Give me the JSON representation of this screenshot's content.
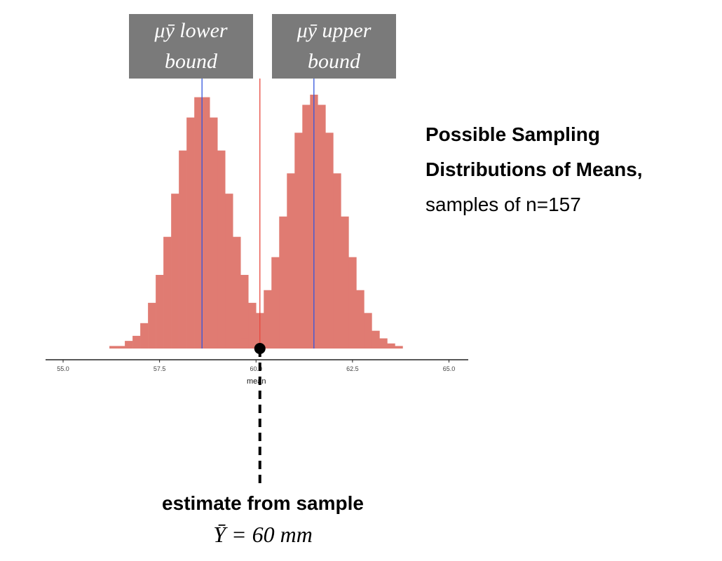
{
  "chart_data": {
    "type": "histogram",
    "bins": [
      55.8,
      56,
      56.2,
      56.4,
      56.6,
      56.8,
      57,
      57.2,
      57.4,
      57.6,
      57.8,
      58,
      58.2,
      58.4,
      58.6,
      58.8,
      59,
      59.2,
      59.4,
      59.6,
      59.8,
      60,
      60.2,
      60.4,
      60.6,
      60.8,
      61,
      61.2,
      61.4,
      61.6,
      61.8,
      62,
      62.2,
      62.4,
      62.6,
      62.8,
      63,
      63.2,
      63.4,
      63.6,
      63.8,
      64,
      64.2,
      64.4
    ],
    "series": [
      {
        "color": "#e07b72",
        "values": [
          0,
          0,
          1,
          1,
          3,
          5,
          10,
          18,
          29,
          44,
          61,
          78,
          91,
          99,
          99,
          91,
          78,
          61,
          44,
          29,
          18,
          10,
          5,
          3,
          1,
          1,
          0,
          0,
          0,
          0,
          0,
          0,
          0,
          0,
          0,
          0,
          0,
          0,
          0,
          0,
          0,
          0,
          0
        ]
      },
      {
        "color": "#e07b72",
        "values": [
          0,
          0,
          0,
          0,
          0,
          0,
          0,
          0,
          0,
          0,
          0,
          0,
          0,
          0,
          0,
          0,
          0,
          1,
          2,
          4,
          7,
          14,
          23,
          36,
          52,
          69,
          85,
          96,
          100,
          96,
          85,
          69,
          52,
          36,
          23,
          14,
          7,
          4,
          2,
          1,
          0,
          0,
          0
        ]
      }
    ],
    "xlim": [
      54.6,
      65.5
    ],
    "xticks": [
      {
        "value": 55,
        "label": "55.0"
      },
      {
        "value": 57.5,
        "label": "57.5"
      },
      {
        "value": 60,
        "label": "60.0"
      },
      {
        "value": 62.5,
        "label": "62.5"
      },
      {
        "value": 65,
        "label": "65.0"
      }
    ],
    "ylim": [
      0,
      100
    ],
    "xlabel": "mean",
    "vlines": [
      {
        "x": 58.6,
        "color": "#3355dd",
        "label": "μȳ lower bound"
      },
      {
        "x": 61.5,
        "color": "#3355dd",
        "label": "μȳ upper bound"
      },
      {
        "x": 60.1,
        "color": "#e8473d"
      }
    ],
    "marker": {
      "x": 60.1
    },
    "side_title": "Possible Sampling Distributions of Means,",
    "side_subtitle": "samples of n=157",
    "estimate_label": "estimate from sample",
    "estimate_formula": "Ȳ = 60 mm"
  }
}
